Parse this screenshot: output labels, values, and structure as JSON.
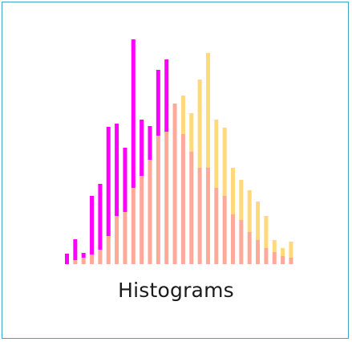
{
  "tile": {
    "title": "Histograms"
  },
  "colors": {
    "border": "#3aa7cf",
    "series_a": "#ff00ff",
    "series_b": "#ffd97a",
    "overlap": "#ffa99a"
  },
  "chart_data": {
    "type": "bar",
    "bins": 28,
    "series": [
      {
        "values": [
          13,
          31,
          14,
          85,
          100,
          171,
          175,
          145,
          280,
          180,
          172,
          242,
          255,
          200,
          162,
          140,
          120,
          120,
          95,
          85,
          62,
          55,
          40,
          30,
          20,
          15,
          10,
          8
        ],
        "color": "#ff00ff"
      },
      {
        "values": [
          0,
          5,
          8,
          12,
          18,
          35,
          60,
          65,
          95,
          110,
          130,
          160,
          165,
          200,
          210,
          188,
          230,
          263,
          180,
          170,
          120,
          105,
          92,
          78,
          60,
          30,
          20,
          28
        ],
        "color": "#ffd97a"
      }
    ],
    "ylim": [
      0,
      285
    ]
  }
}
